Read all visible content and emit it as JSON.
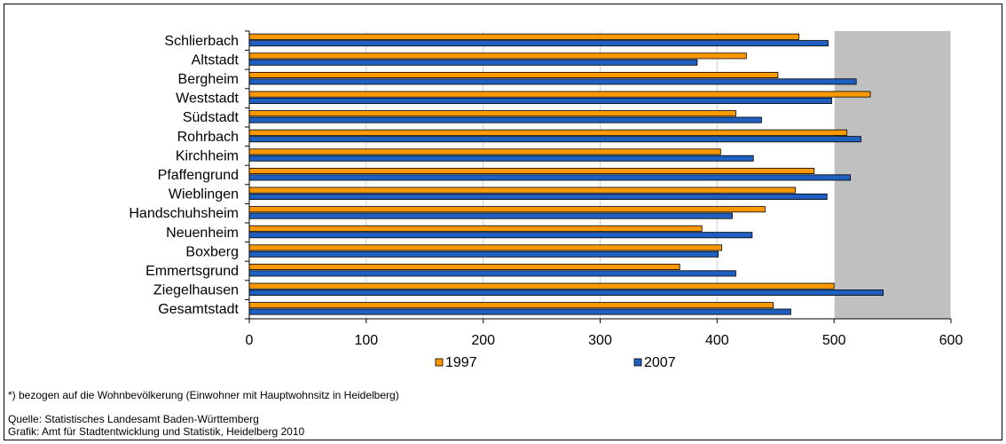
{
  "chart_data": {
    "type": "bar",
    "orientation": "horizontal",
    "categories": [
      "Schlierbach",
      "Altstadt",
      "Bergheim",
      "Weststadt",
      "Südstadt",
      "Rohrbach",
      "Kirchheim",
      "Pfaffengrund",
      "Wieblingen",
      "Handschuhsheim",
      "Neuenheim",
      "Boxberg",
      "Emmertsgrund",
      "Ziegelhausen",
      "Gesamtstadt"
    ],
    "series": [
      {
        "name": "1997",
        "color": "#FF9900",
        "values": [
          470,
          425,
          452,
          531,
          416,
          511,
          403,
          483,
          467,
          441,
          387,
          404,
          368,
          500,
          448
        ]
      },
      {
        "name": "2007",
        "color": "#1F5FBF",
        "values": [
          495,
          383,
          519,
          498,
          438,
          523,
          431,
          514,
          494,
          413,
          430,
          401,
          416,
          542,
          463
        ]
      }
    ],
    "xlim": [
      0,
      600
    ],
    "xticks": [
      "0",
      "100",
      "200",
      "300",
      "400",
      "500",
      "600"
    ],
    "grid": true,
    "plot_background": "#C0C0C0",
    "legend_position": "bottom"
  },
  "notes": {
    "footnote": "*) bezogen auf die Wohnbevölkerung (Einwohner mit Hauptwohnsitz in Heidelberg)",
    "source": "Quelle: Statistisches Landesamt Baden-Württemberg",
    "graphic": "Grafik: Amt für Stadtentwicklung und Statistik, Heidelberg 2010"
  }
}
